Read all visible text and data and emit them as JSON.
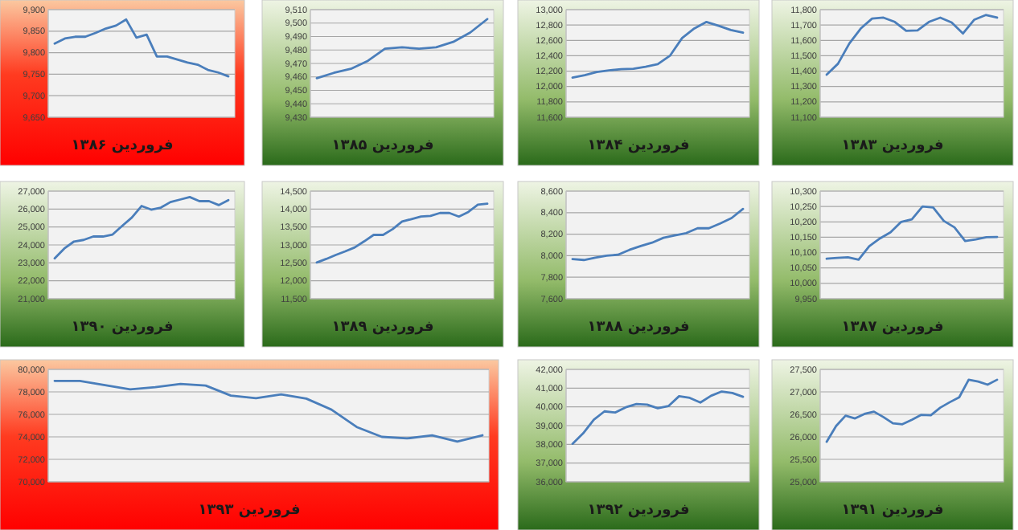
{
  "chart_data": [
    {
      "type": "line",
      "title": "فروردین ۱۳۸۶",
      "categories": [
        null,
        null,
        null,
        null,
        null,
        null,
        null,
        null,
        null,
        null,
        null,
        null,
        null,
        null,
        null,
        null,
        null,
        null
      ],
      "values": [
        9821,
        9833,
        9837,
        9837,
        9846,
        9856,
        9863,
        9877,
        9835,
        9842,
        9791,
        9791,
        9784,
        9777,
        9772,
        9760,
        9754,
        9745
      ],
      "color": "#4a7ebb",
      "ylim": [
        9650,
        9900
      ],
      "yticks": [
        {
          "value": 9650,
          "label": "9,650"
        },
        {
          "value": 9700,
          "label": "9,700"
        },
        {
          "value": 9750,
          "label": "9,750"
        },
        {
          "value": 9800,
          "label": "9,800"
        },
        {
          "value": 9850,
          "label": "9,850"
        },
        {
          "value": 9900,
          "label": "9,900"
        }
      ],
      "grid": "y"
    },
    {
      "type": "line",
      "title": "فروردین ۱۳۸۵",
      "categories": [
        null,
        null,
        null,
        null,
        null,
        null,
        null,
        null,
        null,
        null,
        null
      ],
      "values": [
        9459,
        9463,
        9466,
        9472,
        9481,
        9482,
        9481,
        9482,
        9486,
        9493,
        9503
      ],
      "color": "#4a7ebb",
      "ylim": [
        9430,
        9510
      ],
      "yticks": [
        {
          "value": 9430,
          "label": "9,430"
        },
        {
          "value": 9440,
          "label": "9,440"
        },
        {
          "value": 9450,
          "label": "9,450"
        },
        {
          "value": 9460,
          "label": "9,460"
        },
        {
          "value": 9470,
          "label": "9,470"
        },
        {
          "value": 9480,
          "label": "9,480"
        },
        {
          "value": 9490,
          "label": "9,490"
        },
        {
          "value": 9500,
          "label": "9,500"
        },
        {
          "value": 9510,
          "label": "9,510"
        }
      ],
      "grid": "y"
    },
    {
      "type": "line",
      "title": "فروردین ۱۳۸۴",
      "categories": [
        null,
        null,
        null,
        null,
        null,
        null,
        null,
        null,
        null,
        null,
        null,
        null,
        null,
        null,
        null
      ],
      "values": [
        12116,
        12148,
        12190,
        12210,
        12225,
        12230,
        12257,
        12290,
        12400,
        12630,
        12755,
        12840,
        12790,
        12735,
        12700
      ],
      "color": "#4a7ebb",
      "ylim": [
        11600,
        13000
      ],
      "yticks": [
        {
          "value": 11600,
          "label": "11,600"
        },
        {
          "value": 11800,
          "label": "11,800"
        },
        {
          "value": 12000,
          "label": "12,000"
        },
        {
          "value": 12200,
          "label": "12,200"
        },
        {
          "value": 12400,
          "label": "12,400"
        },
        {
          "value": 12600,
          "label": "12,600"
        },
        {
          "value": 12800,
          "label": "12,800"
        },
        {
          "value": 13000,
          "label": "13,000"
        }
      ],
      "grid": "y"
    },
    {
      "type": "line",
      "title": "فروردین ۱۳۸۳",
      "categories": [
        null,
        null,
        null,
        null,
        null,
        null,
        null,
        null,
        null,
        null,
        null,
        null,
        null,
        null,
        null,
        null
      ],
      "values": [
        11377,
        11448,
        11580,
        11677,
        11742,
        11748,
        11720,
        11662,
        11665,
        11720,
        11748,
        11716,
        11645,
        11735,
        11765,
        11748
      ],
      "color": "#4a7ebb",
      "ylim": [
        11100,
        11800
      ],
      "yticks": [
        {
          "value": 11100,
          "label": "11,100"
        },
        {
          "value": 11200,
          "label": "11,200"
        },
        {
          "value": 11300,
          "label": "11,300"
        },
        {
          "value": 11400,
          "label": "11,400"
        },
        {
          "value": 11500,
          "label": "11,500"
        },
        {
          "value": 11600,
          "label": "11,600"
        },
        {
          "value": 11700,
          "label": "11,700"
        },
        {
          "value": 11800,
          "label": "11,800"
        }
      ],
      "grid": "y"
    },
    {
      "type": "line",
      "title": "فروردین ۱۳۹۰",
      "categories": [
        null,
        null,
        null,
        null,
        null,
        null,
        null,
        null,
        null,
        null,
        null,
        null,
        null,
        null,
        null,
        null,
        null,
        null,
        null
      ],
      "values": [
        23250,
        23800,
        24190,
        24280,
        24470,
        24470,
        24580,
        25060,
        25530,
        26170,
        25970,
        26080,
        26390,
        26530,
        26670,
        26440,
        26440,
        26220,
        26500
      ],
      "color": "#4a7ebb",
      "ylim": [
        21000,
        27000
      ],
      "yticks": [
        {
          "value": 21000,
          "label": "21,000"
        },
        {
          "value": 22000,
          "label": "22,000"
        },
        {
          "value": 23000,
          "label": "23,000"
        },
        {
          "value": 24000,
          "label": "24,000"
        },
        {
          "value": 25000,
          "label": "25,000"
        },
        {
          "value": 26000,
          "label": "26,000"
        },
        {
          "value": 27000,
          "label": "27,000"
        }
      ],
      "grid": "y"
    },
    {
      "type": "line",
      "title": "فروردین ۱۳۸۹",
      "categories": [
        null,
        null,
        null,
        null,
        null,
        null,
        null,
        null,
        null,
        null,
        null,
        null,
        null,
        null,
        null,
        null,
        null,
        null,
        null
      ],
      "values": [
        12510,
        12610,
        12720,
        12820,
        12930,
        13100,
        13280,
        13280,
        13440,
        13650,
        13720,
        13790,
        13810,
        13890,
        13890,
        13790,
        13920,
        14120,
        14150
      ],
      "color": "#4a7ebb",
      "ylim": [
        11500,
        14500
      ],
      "yticks": [
        {
          "value": 11500,
          "label": "11,500"
        },
        {
          "value": 12000,
          "label": "12,000"
        },
        {
          "value": 12500,
          "label": "12,500"
        },
        {
          "value": 13000,
          "label": "13,000"
        },
        {
          "value": 13500,
          "label": "13,500"
        },
        {
          "value": 14000,
          "label": "14,000"
        },
        {
          "value": 14500,
          "label": "14,500"
        }
      ],
      "grid": "y"
    },
    {
      "type": "line",
      "title": "فروردین ۱۳۸۸",
      "categories": [
        null,
        null,
        null,
        null,
        null,
        null,
        null,
        null,
        null,
        null,
        null,
        null,
        null,
        null,
        null,
        null
      ],
      "values": [
        7969,
        7960,
        7982,
        8000,
        8009,
        8054,
        8090,
        8121,
        8166,
        8188,
        8210,
        8255,
        8255,
        8300,
        8350,
        8435
      ],
      "color": "#4a7ebb",
      "ylim": [
        7600,
        8600
      ],
      "yticks": [
        {
          "value": 7600,
          "label": "7,600"
        },
        {
          "value": 7800,
          "label": "7,800"
        },
        {
          "value": 8000,
          "label": "8,000"
        },
        {
          "value": 8200,
          "label": "8,200"
        },
        {
          "value": 8400,
          "label": "8,400"
        },
        {
          "value": 8600,
          "label": "8,600"
        }
      ],
      "grid": "y"
    },
    {
      "type": "line",
      "title": "فروردین ۱۳۸۷",
      "categories": [
        null,
        null,
        null,
        null,
        null,
        null,
        null,
        null,
        null,
        null,
        null,
        null,
        null,
        null,
        null,
        null,
        null
      ],
      "values": [
        10080,
        10083,
        10085,
        10077,
        10121,
        10146,
        10166,
        10200,
        10208,
        10250,
        10247,
        10203,
        10182,
        10138,
        10143,
        10150,
        10151
      ],
      "color": "#4a7ebb",
      "ylim": [
        9950,
        10300
      ],
      "yticks": [
        {
          "value": 9950,
          "label": "9,950"
        },
        {
          "value": 10000,
          "label": "10,000"
        },
        {
          "value": 10050,
          "label": "10,050"
        },
        {
          "value": 10100,
          "label": "10,100"
        },
        {
          "value": 10150,
          "label": "10,150"
        },
        {
          "value": 10200,
          "label": "10,200"
        },
        {
          "value": 10250,
          "label": "10,250"
        },
        {
          "value": 10300,
          "label": "10,300"
        }
      ],
      "grid": "y"
    },
    {
      "type": "line",
      "title": "فروردین ۱۳۹۳",
      "categories": [
        null,
        null,
        null,
        null,
        null,
        null,
        null,
        null,
        null,
        null,
        null,
        null,
        null,
        null,
        null,
        null,
        null,
        null
      ],
      "values": [
        78980,
        78980,
        78600,
        78230,
        78420,
        78700,
        78560,
        77670,
        77440,
        77770,
        77400,
        76420,
        74880,
        74000,
        73860,
        74140,
        73580,
        74140
      ],
      "color": "#4a7ebb",
      "ylim": [
        70000,
        80000
      ],
      "yticks": [
        {
          "value": 70000,
          "label": "70,000"
        },
        {
          "value": 72000,
          "label": "72,000"
        },
        {
          "value": 74000,
          "label": "74,000"
        },
        {
          "value": 76000,
          "label": "76,000"
        },
        {
          "value": 78000,
          "label": "78,000"
        },
        {
          "value": 80000,
          "label": "80,000"
        }
      ],
      "grid": "y"
    },
    {
      "type": "line",
      "title": "فروردین ۱۳۹۲",
      "categories": [
        null,
        null,
        null,
        null,
        null,
        null,
        null,
        null,
        null,
        null,
        null,
        null,
        null,
        null,
        null,
        null,
        null
      ],
      "values": [
        38030,
        38590,
        39320,
        39760,
        39700,
        39980,
        40150,
        40120,
        39930,
        40040,
        40570,
        40480,
        40230,
        40590,
        40820,
        40740,
        40540
      ],
      "color": "#4a7ebb",
      "ylim": [
        36000,
        42000
      ],
      "yticks": [
        {
          "value": 36000,
          "label": "36,000"
        },
        {
          "value": 37000,
          "label": "37,000"
        },
        {
          "value": 38000,
          "label": "38,000"
        },
        {
          "value": 39000,
          "label": "39,000"
        },
        {
          "value": 40000,
          "label": "40,000"
        },
        {
          "value": 41000,
          "label": "41,000"
        },
        {
          "value": 42000,
          "label": "42,000"
        }
      ],
      "grid": "y"
    },
    {
      "type": "line",
      "title": "فروردین ۱۳۹۱",
      "categories": [
        null,
        null,
        null,
        null,
        null,
        null,
        null,
        null,
        null,
        null,
        null,
        null,
        null,
        null,
        null,
        null,
        null,
        null,
        null
      ],
      "values": [
        25890,
        26240,
        26470,
        26410,
        26510,
        26560,
        26440,
        26300,
        26280,
        26380,
        26490,
        26480,
        26650,
        26770,
        26880,
        27270,
        27230,
        27160,
        27270
      ],
      "color": "#4a7ebb",
      "ylim": [
        25000,
        27500
      ],
      "yticks": [
        {
          "value": 25000,
          "label": "25,000"
        },
        {
          "value": 25500,
          "label": "25,500"
        },
        {
          "value": 26000,
          "label": "26,000"
        },
        {
          "value": 26500,
          "label": "26,500"
        },
        {
          "value": 27000,
          "label": "27,000"
        },
        {
          "value": 27500,
          "label": "27,500"
        }
      ],
      "grid": "y"
    }
  ]
}
